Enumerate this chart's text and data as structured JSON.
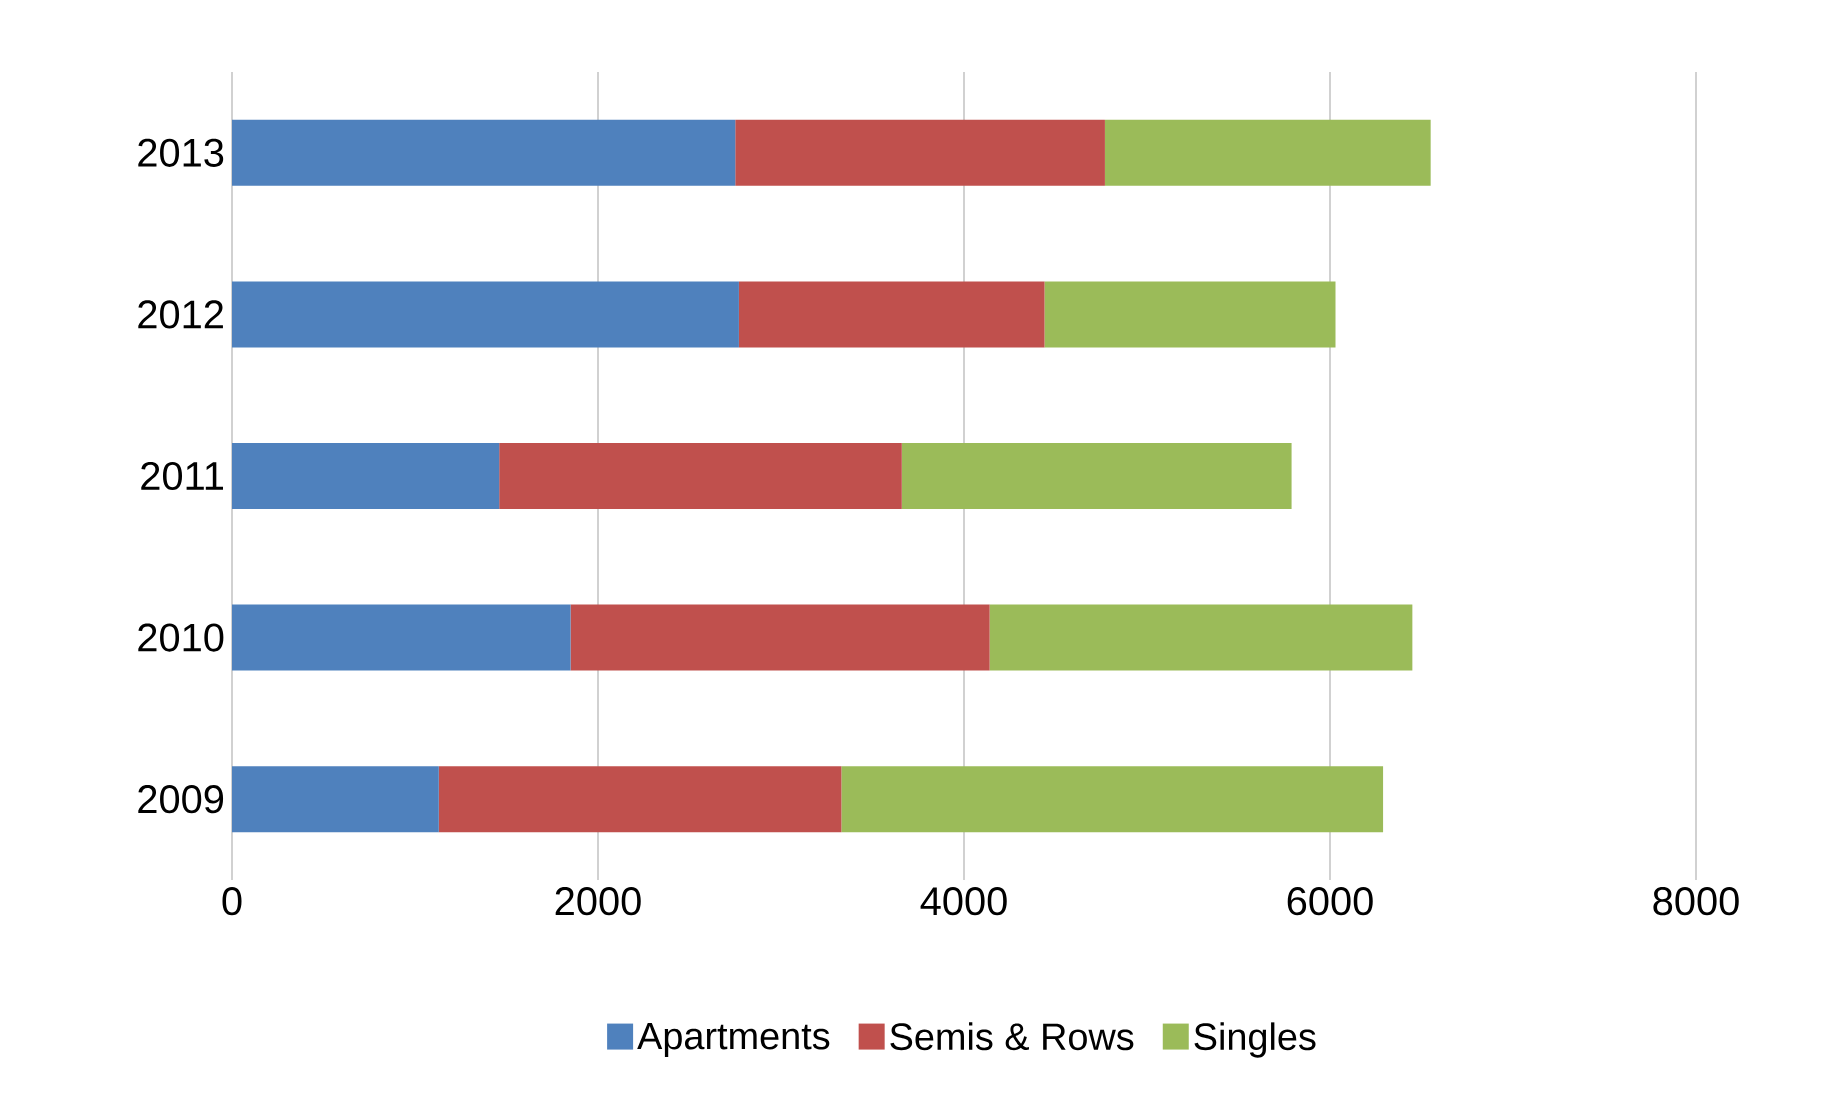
{
  "chart_data": {
    "type": "bar",
    "orientation": "horizontal",
    "stacked": true,
    "categories": [
      "2013",
      "2012",
      "2011",
      "2010",
      "2009"
    ],
    "series": [
      {
        "name": "Apartments",
        "color": "#4f81bd",
        "values": [
          2750,
          2770,
          1460,
          1850,
          1130
        ]
      },
      {
        "name": "Semis & Rows",
        "color": "#c0504d",
        "values": [
          2020,
          1670,
          2200,
          2290,
          2200
        ]
      },
      {
        "name": "Singles",
        "color": "#9bbb59",
        "values": [
          1780,
          1590,
          2130,
          2310,
          2960
        ]
      }
    ],
    "xlim": [
      0,
      8000
    ],
    "xticks": [
      0,
      2000,
      4000,
      6000,
      8000
    ],
    "grid": "x",
    "legend": "bottom"
  }
}
